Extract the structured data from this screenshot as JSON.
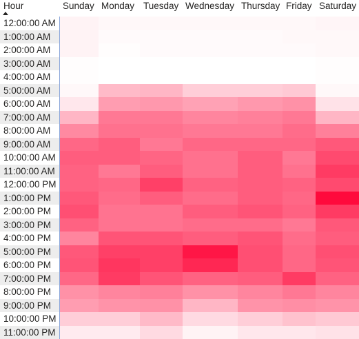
{
  "matrix": {
    "row_header_title": "Hour",
    "sort_icon": "sort-ascending-icon",
    "days": [
      "Sunday",
      "Monday",
      "Tuesday",
      "Wednesday",
      "Thursday",
      "Friday",
      "Saturday"
    ],
    "hours": [
      "12:00:00 AM",
      "1:00:00 AM",
      "2:00:00 AM",
      "3:00:00 AM",
      "4:00:00 AM",
      "5:00:00 AM",
      "6:00:00 AM",
      "7:00:00 AM",
      "8:00:00 AM",
      "9:00:00 AM",
      "10:00:00 AM",
      "11:00:00 AM",
      "12:00:00 PM",
      "1:00:00 PM",
      "2:00:00 PM",
      "3:00:00 PM",
      "4:00:00 PM",
      "5:00:00 PM",
      "6:00:00 PM",
      "7:00:00 PM",
      "8:00:00 PM",
      "9:00:00 PM",
      "10:00:00 PM",
      "11:00:00 PM"
    ],
    "heat_color": "#ff0a3c",
    "intensity": [
      [
        0.05,
        0.03,
        0.03,
        0.03,
        0.03,
        0.03,
        0.04
      ],
      [
        0.05,
        0.02,
        0.02,
        0.02,
        0.02,
        0.03,
        0.03
      ],
      [
        0.05,
        0.01,
        0.02,
        0.02,
        0.02,
        0.02,
        0.03
      ],
      [
        0.01,
        0.0,
        0.0,
        0.0,
        0.0,
        0.0,
        0.01
      ],
      [
        0.01,
        0.0,
        0.0,
        0.0,
        0.0,
        0.0,
        0.01
      ],
      [
        0.03,
        0.28,
        0.3,
        0.2,
        0.2,
        0.22,
        0.03
      ],
      [
        0.1,
        0.4,
        0.42,
        0.38,
        0.42,
        0.45,
        0.12
      ],
      [
        0.3,
        0.55,
        0.55,
        0.5,
        0.52,
        0.55,
        0.3
      ],
      [
        0.48,
        0.58,
        0.58,
        0.55,
        0.55,
        0.6,
        0.52
      ],
      [
        0.62,
        0.66,
        0.55,
        0.62,
        0.62,
        0.62,
        0.68
      ],
      [
        0.66,
        0.66,
        0.63,
        0.58,
        0.66,
        0.55,
        0.74
      ],
      [
        0.64,
        0.55,
        0.66,
        0.58,
        0.66,
        0.58,
        0.8
      ],
      [
        0.64,
        0.62,
        0.78,
        0.64,
        0.66,
        0.64,
        0.74
      ],
      [
        0.68,
        0.6,
        0.66,
        0.6,
        0.66,
        0.62,
        1.0
      ],
      [
        0.72,
        0.57,
        0.57,
        0.66,
        0.7,
        0.64,
        0.8
      ],
      [
        0.64,
        0.57,
        0.57,
        0.6,
        0.6,
        0.55,
        0.68
      ],
      [
        0.5,
        0.7,
        0.7,
        0.66,
        0.7,
        0.6,
        0.66
      ],
      [
        0.68,
        0.78,
        0.78,
        0.95,
        0.72,
        0.62,
        0.72
      ],
      [
        0.7,
        0.82,
        0.78,
        0.88,
        0.72,
        0.62,
        0.7
      ],
      [
        0.62,
        0.8,
        0.7,
        0.64,
        0.66,
        0.8,
        0.64
      ],
      [
        0.45,
        0.5,
        0.52,
        0.45,
        0.5,
        0.55,
        0.5
      ],
      [
        0.4,
        0.44,
        0.45,
        0.3,
        0.44,
        0.46,
        0.44
      ],
      [
        0.2,
        0.2,
        0.28,
        0.15,
        0.2,
        0.25,
        0.22
      ],
      [
        0.08,
        0.08,
        0.15,
        0.05,
        0.1,
        0.1,
        0.12
      ]
    ]
  }
}
